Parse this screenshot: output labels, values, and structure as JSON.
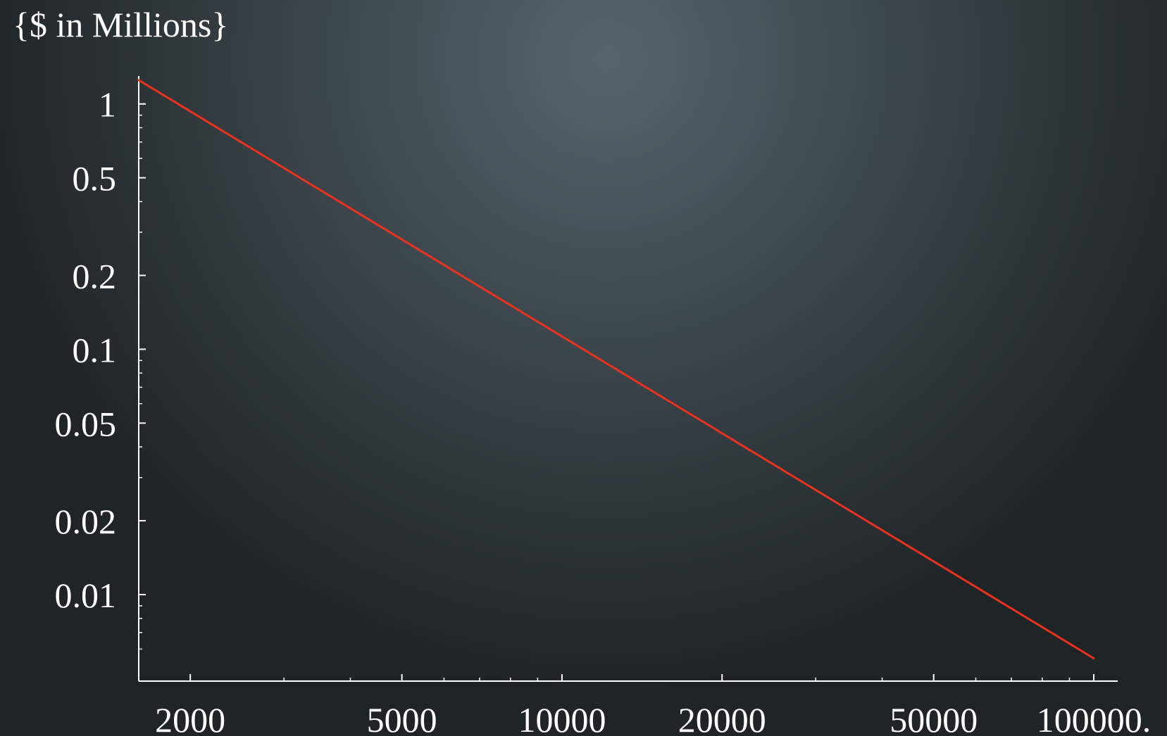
{
  "chart_data": {
    "type": "line",
    "title": "",
    "xlabel": "",
    "ylabel": "{$  in Millions}",
    "x_scale": "log",
    "y_scale": "log",
    "xlim": [
      1600,
      100000
    ],
    "ylim": [
      0.005,
      1.3
    ],
    "x_ticks": [
      {
        "value": 2000,
        "label": "2000"
      },
      {
        "value": 5000,
        "label": "5000"
      },
      {
        "value": 10000,
        "label": "10000"
      },
      {
        "value": 20000,
        "label": "20000"
      },
      {
        "value": 50000,
        "label": "50000"
      },
      {
        "value": 100000,
        "label": "100000."
      }
    ],
    "y_ticks": [
      {
        "value": 1,
        "label": "1"
      },
      {
        "value": 0.5,
        "label": "0.5"
      },
      {
        "value": 0.2,
        "label": "0.2"
      },
      {
        "value": 0.1,
        "label": "0.1"
      },
      {
        "value": 0.05,
        "label": "0.05"
      },
      {
        "value": 0.02,
        "label": "0.02"
      },
      {
        "value": 0.01,
        "label": "0.01"
      }
    ],
    "x_minor_ticks": [
      3000,
      4000,
      6000,
      7000,
      8000,
      9000,
      30000,
      40000,
      60000,
      70000,
      80000,
      90000
    ],
    "y_minor_ticks": [
      0.9,
      0.8,
      0.7,
      0.6,
      0.4,
      0.3,
      0.09,
      0.08,
      0.07,
      0.06,
      0.04,
      0.03,
      0.009,
      0.008,
      0.007,
      0.006
    ],
    "series": [
      {
        "color": "#e8321e",
        "x": [
          1600,
          100000
        ],
        "y": [
          1.25,
          0.0055
        ]
      }
    ],
    "grid": false,
    "legend": "none",
    "colors": {
      "axis": "#ffffff",
      "text": "#ffffff",
      "line": "#e8321e"
    }
  }
}
